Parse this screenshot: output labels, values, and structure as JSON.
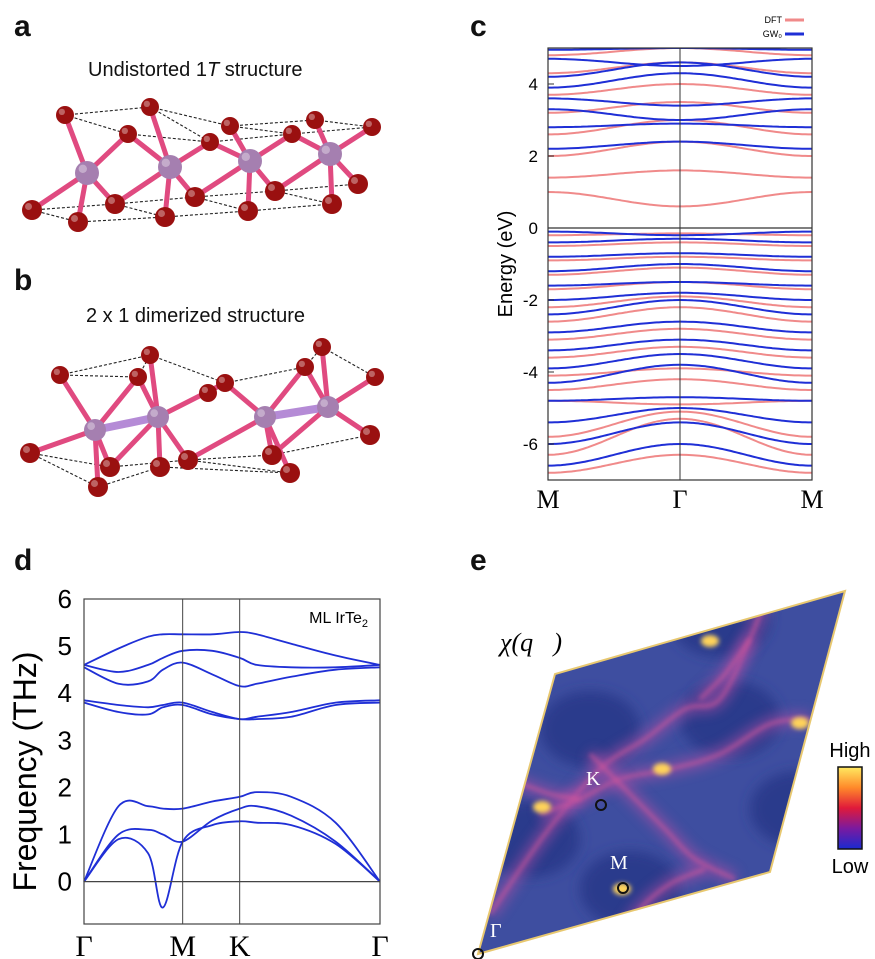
{
  "panels": {
    "a": {
      "label": "a",
      "title_pre": "Undistorted 1",
      "title_italic": "T",
      "title_post": " structure"
    },
    "b": {
      "label": "b",
      "title": "2 x 1 dimerized structure"
    },
    "c": {
      "label": "c"
    },
    "d": {
      "label": "d"
    },
    "e": {
      "label": "e"
    }
  },
  "colors": {
    "dft": "#f08a8a",
    "gw0": "#1f2fd6",
    "phonon": "#1f2fd6",
    "atom_te": "#9a1010",
    "atom_ir": "#a57fb0",
    "bond": "#e04a80",
    "map_bg": "#3e4ea0"
  },
  "chart_data": [
    {
      "id": "c",
      "type": "line",
      "ylabel": "Energy (eV)",
      "ylim": [
        -7,
        5
      ],
      "yticks": [
        -6,
        -4,
        -2,
        0,
        2,
        4
      ],
      "x_ticks": [
        "M",
        "Γ",
        "M"
      ],
      "legend": [
        "DFT",
        "GW₀"
      ],
      "legend_placement": "top-right",
      "grid": false,
      "series": [
        {
          "name": "DFT",
          "x": [
            0,
            0.5,
            1
          ],
          "bands": [
            [
              -6.8,
              -6.3,
              -6.8
            ],
            [
              -6.3,
              -5.3,
              -6.3
            ],
            [
              -5.8,
              -5.1,
              -5.8
            ],
            [
              -4.8,
              -4.9,
              -4.8
            ],
            [
              -4.5,
              -4.2,
              -4.5
            ],
            [
              -4.1,
              -3.9,
              -4.1
            ],
            [
              -3.6,
              -3.3,
              -3.6
            ],
            [
              -3.1,
              -2.8,
              -3.1
            ],
            [
              -2.6,
              -2.2,
              -2.6
            ],
            [
              -2.2,
              -1.9,
              -2.2
            ],
            [
              -1.7,
              -1.5,
              -1.7
            ],
            [
              -1.3,
              -1.1,
              -1.3
            ],
            [
              -0.9,
              -0.8,
              -0.9
            ],
            [
              -0.5,
              -0.4,
              -0.5
            ],
            [
              -0.2,
              -0.15,
              -0.2
            ],
            [
              1.0,
              0.6,
              1.0
            ],
            [
              1.4,
              1.6,
              1.4
            ],
            [
              2.0,
              2.4,
              2.0
            ],
            [
              2.6,
              3.0,
              2.6
            ],
            [
              3.2,
              3.5,
              3.2
            ],
            [
              3.7,
              4.0,
              3.7
            ],
            [
              4.3,
              4.6,
              4.3
            ],
            [
              4.8,
              5.0,
              4.8
            ]
          ]
        },
        {
          "name": "GW₀",
          "x": [
            0,
            0.5,
            1
          ],
          "bands": [
            [
              -6.6,
              -6.0,
              -6.6
            ],
            [
              -6.0,
              -5.4,
              -6.0
            ],
            [
              -5.4,
              -5.0,
              -5.4
            ],
            [
              -4.8,
              -4.7,
              -4.8
            ],
            [
              -4.3,
              -3.8,
              -4.3
            ],
            [
              -3.9,
              -3.5,
              -3.9
            ],
            [
              -3.4,
              -3.1,
              -3.4
            ],
            [
              -2.9,
              -2.6,
              -2.9
            ],
            [
              -2.4,
              -2.0,
              -2.4
            ],
            [
              -2.0,
              -1.8,
              -2.0
            ],
            [
              -1.6,
              -1.5,
              -1.6
            ],
            [
              -1.2,
              -1.0,
              -1.2
            ],
            [
              -0.8,
              -0.7,
              -0.8
            ],
            [
              -0.4,
              -0.3,
              -0.4
            ],
            [
              -0.1,
              -0.2,
              -0.1
            ],
            [
              2.2,
              2.4,
              2.2
            ],
            [
              2.8,
              2.9,
              2.8
            ],
            [
              3.3,
              3.0,
              3.3
            ],
            [
              3.6,
              3.4,
              3.6
            ],
            [
              3.9,
              4.3,
              3.9
            ],
            [
              4.2,
              4.6,
              4.2
            ],
            [
              4.7,
              4.5,
              4.7
            ],
            [
              4.95,
              5.0,
              4.95
            ]
          ]
        }
      ]
    },
    {
      "id": "d",
      "type": "line",
      "ylabel": "Frequency (THz)",
      "ylim": [
        -0.9,
        6
      ],
      "yticks": [
        0,
        1,
        2,
        3,
        4,
        5,
        6
      ],
      "x_ticks": [
        "Γ",
        "M",
        "K",
        "Γ"
      ],
      "x_tick_positions": [
        0,
        1,
        1.5778,
        3.0
      ],
      "annotation_pre": "ML IrTe",
      "annotation_sub": "2",
      "grid": false,
      "series": [
        {
          "name": "",
          "x": [
            0,
            0.35,
            0.65,
            0.8,
            1.0,
            1.3,
            1.5778,
            1.75,
            2.1,
            2.55,
            3.0
          ],
          "bands": [
            [
              0,
              0.9,
              0.6,
              -0.55,
              0.85,
              1.2,
              1.28,
              1.25,
              1.2,
              0.8,
              0
            ],
            [
              0,
              1.0,
              1.1,
              1.0,
              0.85,
              1.3,
              1.55,
              1.6,
              1.4,
              0.85,
              0
            ],
            [
              0,
              1.6,
              1.6,
              1.55,
              1.55,
              1.7,
              1.8,
              1.9,
              1.8,
              1.25,
              0
            ],
            [
              3.8,
              3.6,
              3.55,
              3.7,
              3.75,
              3.55,
              3.45,
              3.45,
              3.5,
              3.75,
              3.8
            ],
            [
              3.85,
              3.75,
              3.7,
              3.75,
              3.8,
              3.6,
              3.45,
              3.5,
              3.6,
              3.8,
              3.85
            ],
            [
              4.55,
              4.2,
              4.25,
              4.5,
              4.65,
              4.4,
              4.15,
              4.2,
              4.35,
              4.5,
              4.55
            ],
            [
              4.6,
              4.45,
              4.6,
              4.75,
              4.9,
              4.9,
              4.75,
              4.6,
              4.55,
              4.55,
              4.6
            ],
            [
              4.6,
              4.95,
              5.2,
              5.25,
              5.25,
              5.25,
              5.3,
              5.25,
              5.05,
              4.8,
              4.6
            ]
          ]
        }
      ]
    },
    {
      "id": "e",
      "type": "heatmap",
      "title": "χ(q⃗)",
      "colorbar_high": "High",
      "colorbar_low": "Low",
      "points": [
        "Γ",
        "K",
        "M"
      ]
    }
  ]
}
